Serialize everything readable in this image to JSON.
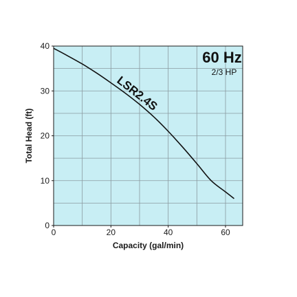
{
  "chart_data": {
    "type": "line",
    "title": "60 Hz",
    "subtitle": "2/3 HP",
    "xlabel": "Capacity (gal/min)",
    "ylabel": "Total Head (ft)",
    "xlim": [
      0,
      66
    ],
    "ylim": [
      0,
      40
    ],
    "x_ticks": [
      0,
      20,
      40,
      60
    ],
    "y_ticks": [
      0,
      10,
      20,
      30,
      40
    ],
    "grid": true,
    "x_grid_step": 10,
    "y_grid_step": 5,
    "colors": {
      "background": "#c8eef4",
      "grid": "#8a9aa0",
      "curve": "#111111"
    },
    "series": [
      {
        "name": "LSR2.4S",
        "x": [
          0,
          5,
          10,
          15,
          20,
          25,
          30,
          35,
          40,
          45,
          50,
          55,
          60,
          63
        ],
        "y": [
          39.5,
          37.8,
          36.0,
          34.0,
          31.8,
          29.5,
          27.0,
          24.2,
          21.0,
          17.5,
          13.8,
          10.0,
          7.5,
          6.0
        ]
      }
    ]
  }
}
